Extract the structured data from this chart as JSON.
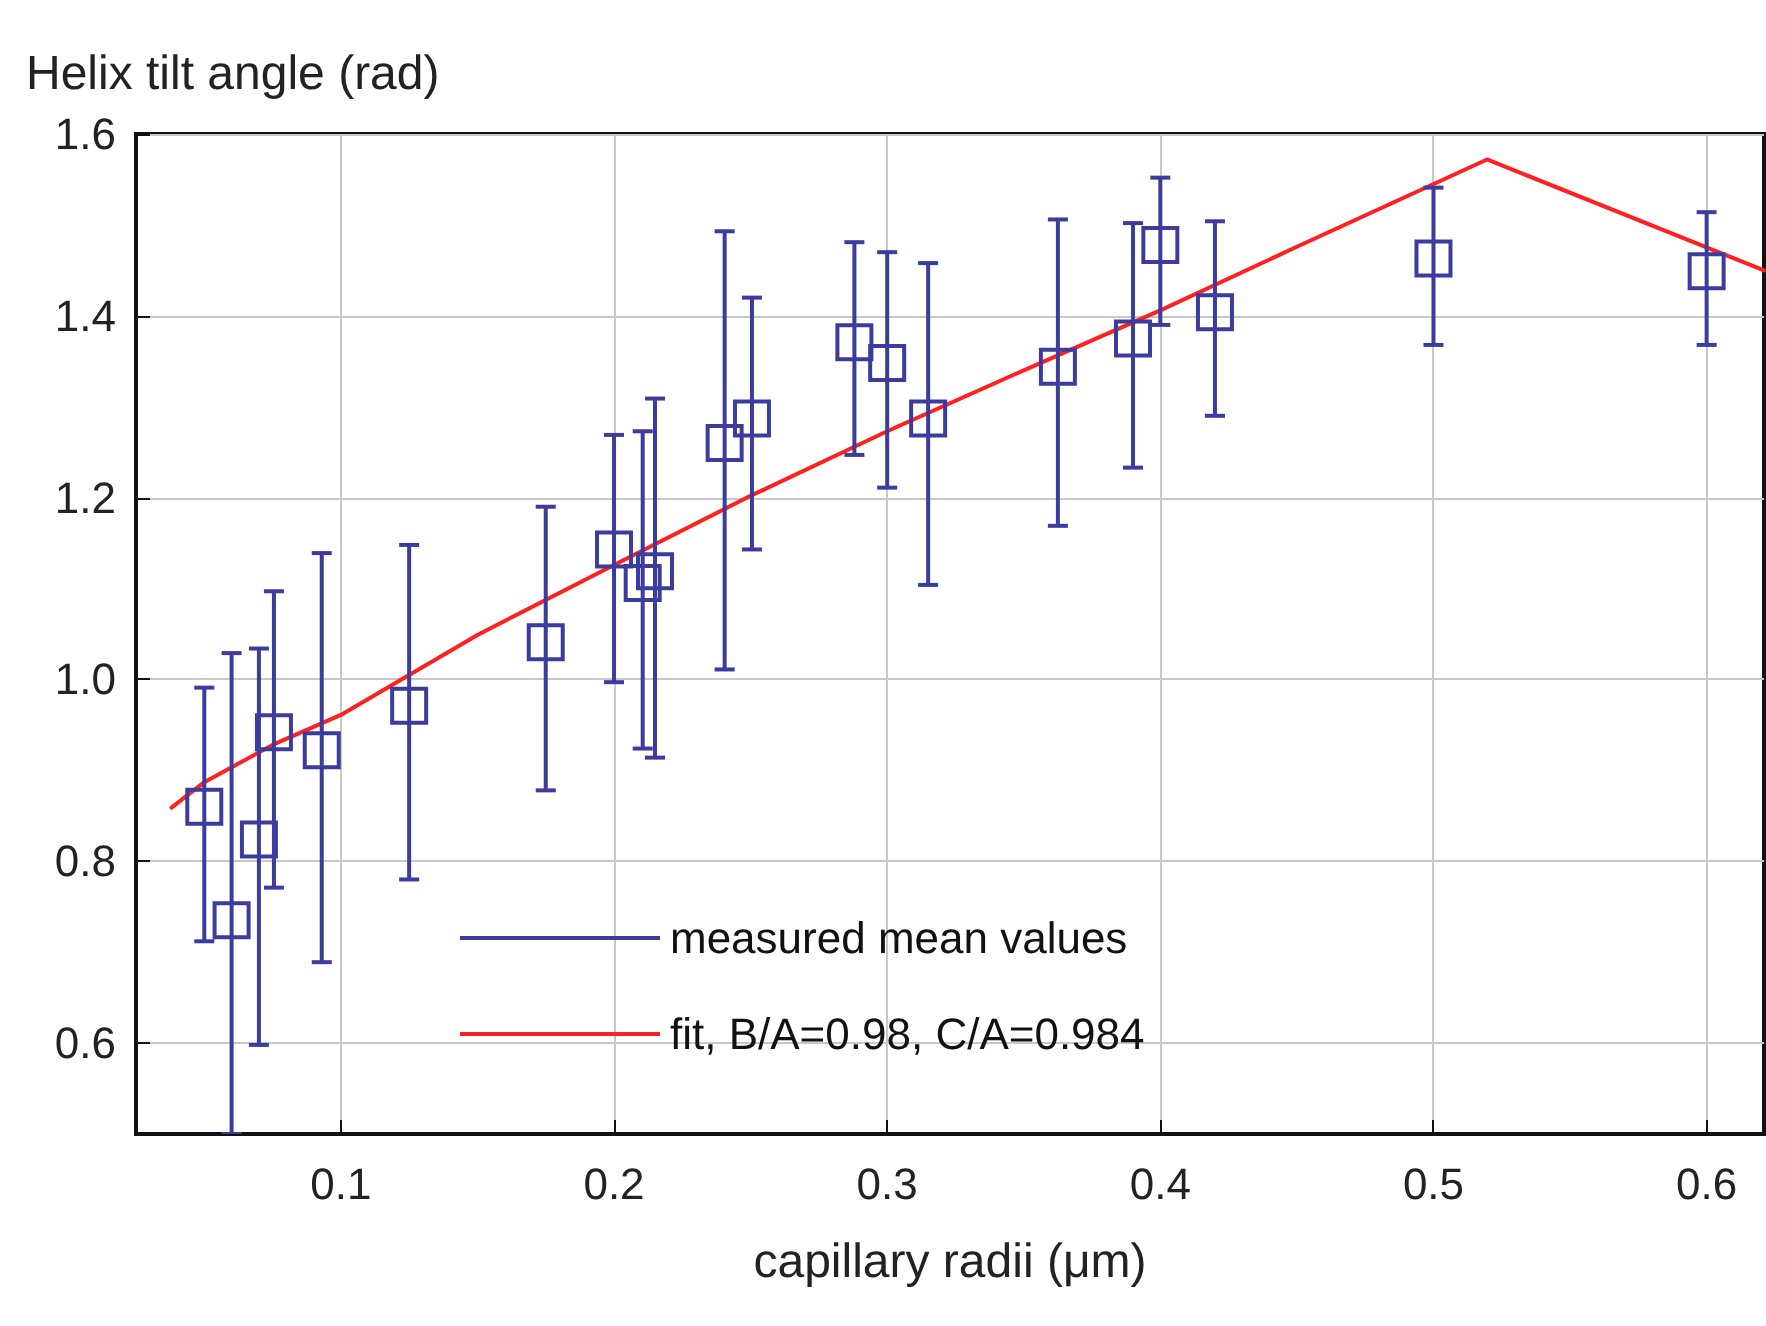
{
  "chart_data": {
    "type": "scatter",
    "xlabel": "capillary radii (μm)",
    "ylabel": "Helix tilt angle (rad)",
    "xlim": [
      0.025,
      0.621
    ],
    "xticks": [
      0.1,
      0.2,
      0.3,
      0.4,
      0.5,
      0.6
    ],
    "ylim": [
      0.5,
      1.6
    ],
    "yticks": [
      0.6,
      0.8,
      {
        "value": 1,
        "label": "1.0"
      },
      1.2,
      1.4,
      1.6
    ],
    "grid": true,
    "legend": "bottom",
    "series": [
      {
        "name": "measured mean values",
        "marker": "square",
        "color": "#3c3c9e",
        "x": [
          0.05,
          0.06,
          0.07,
          0.0755,
          0.093,
          0.125,
          0.175,
          0.2,
          0.2105,
          0.215,
          0.2405,
          0.2505,
          0.288,
          0.3,
          0.315,
          0.3625,
          0.39,
          0.4,
          0.42,
          0.5,
          0.6
        ],
        "values": [
          0.86,
          0.735,
          0.824,
          0.942,
          0.922,
          0.971,
          1.041,
          1.143,
          1.106,
          1.119,
          1.26,
          1.287,
          1.371,
          1.348,
          1.287,
          1.344,
          1.375,
          1.478,
          1.404,
          1.463,
          1.449
        ],
        "errors": [
          [
            0.712,
            0.991
          ],
          [
            0.5,
            1.029
          ],
          [
            0.598,
            1.034
          ],
          [
            0.771,
            1.097
          ],
          [
            0.689,
            1.139
          ],
          [
            0.78,
            1.148
          ],
          [
            0.878,
            1.19
          ],
          [
            0.997,
            1.269
          ],
          [
            0.924,
            1.273
          ],
          [
            0.914,
            1.309
          ],
          [
            1.011,
            1.493
          ],
          [
            1.143,
            1.42
          ],
          [
            1.247,
            1.481
          ],
          [
            1.211,
            1.47
          ],
          [
            1.104,
            1.458
          ],
          [
            1.169,
            1.506
          ],
          [
            1.233,
            1.502
          ],
          [
            1.39,
            1.552
          ],
          [
            1.29,
            1.504
          ],
          [
            1.368,
            1.541
          ],
          [
            1.368,
            1.514
          ]
        ]
      },
      {
        "name": "fit, B/A=0.98, C/A=0.984",
        "type": "line",
        "marker": "none",
        "line_style": "solid",
        "color": "#ff2020",
        "x": [
          0.038,
          0.05,
          0.075,
          0.1,
          0.15,
          0.2,
          0.25,
          0.3,
          0.35,
          0.4,
          0.45,
          0.5196,
          0.621
        ],
        "values": [
          0.859,
          0.887,
          0.928,
          0.961,
          1.049,
          1.126,
          1.202,
          1.273,
          1.34,
          1.406,
          1.476,
          1.572,
          1.45
        ]
      }
    ]
  }
}
